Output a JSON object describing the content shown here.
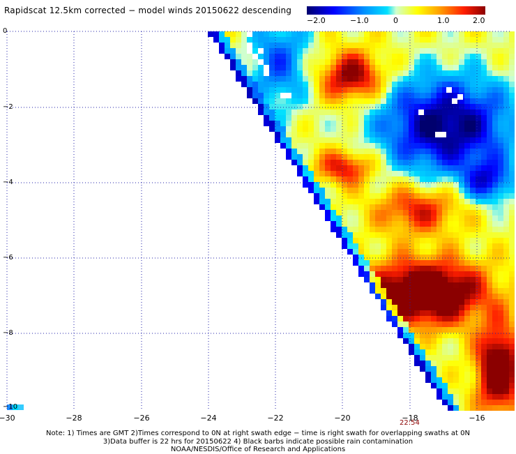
{
  "title": "Rapidscat 12.5km corrected − model winds 20150622 descending",
  "colorbar": {
    "ticks": [
      "−2.0",
      "−1.0",
      "0",
      "1.0",
      "2.0"
    ],
    "range": [
      -2.0,
      2.0
    ]
  },
  "axes": {
    "x_ticks": [
      "−30",
      "−28",
      "−26",
      "−24",
      "−22",
      "−20",
      "−18",
      "−16"
    ],
    "y_ticks": [
      "0",
      "−2",
      "−4",
      "−6",
      "−8",
      "−10"
    ],
    "x_range": [
      -30,
      -15
    ],
    "y_range": [
      -10,
      0
    ],
    "grid": "dotted"
  },
  "time_label": "22:54",
  "notes": [
    "Note: 1) Times are GMT 2)Times correspond to 0N at right swath edge − time is right swath for overlapping swaths at 0N",
    "3)Data buffer is 22 hrs for 20150622 4) Black barbs indicate possible rain contamination",
    "NOAA/NESDIS/Office of Research and Applications"
  ]
}
